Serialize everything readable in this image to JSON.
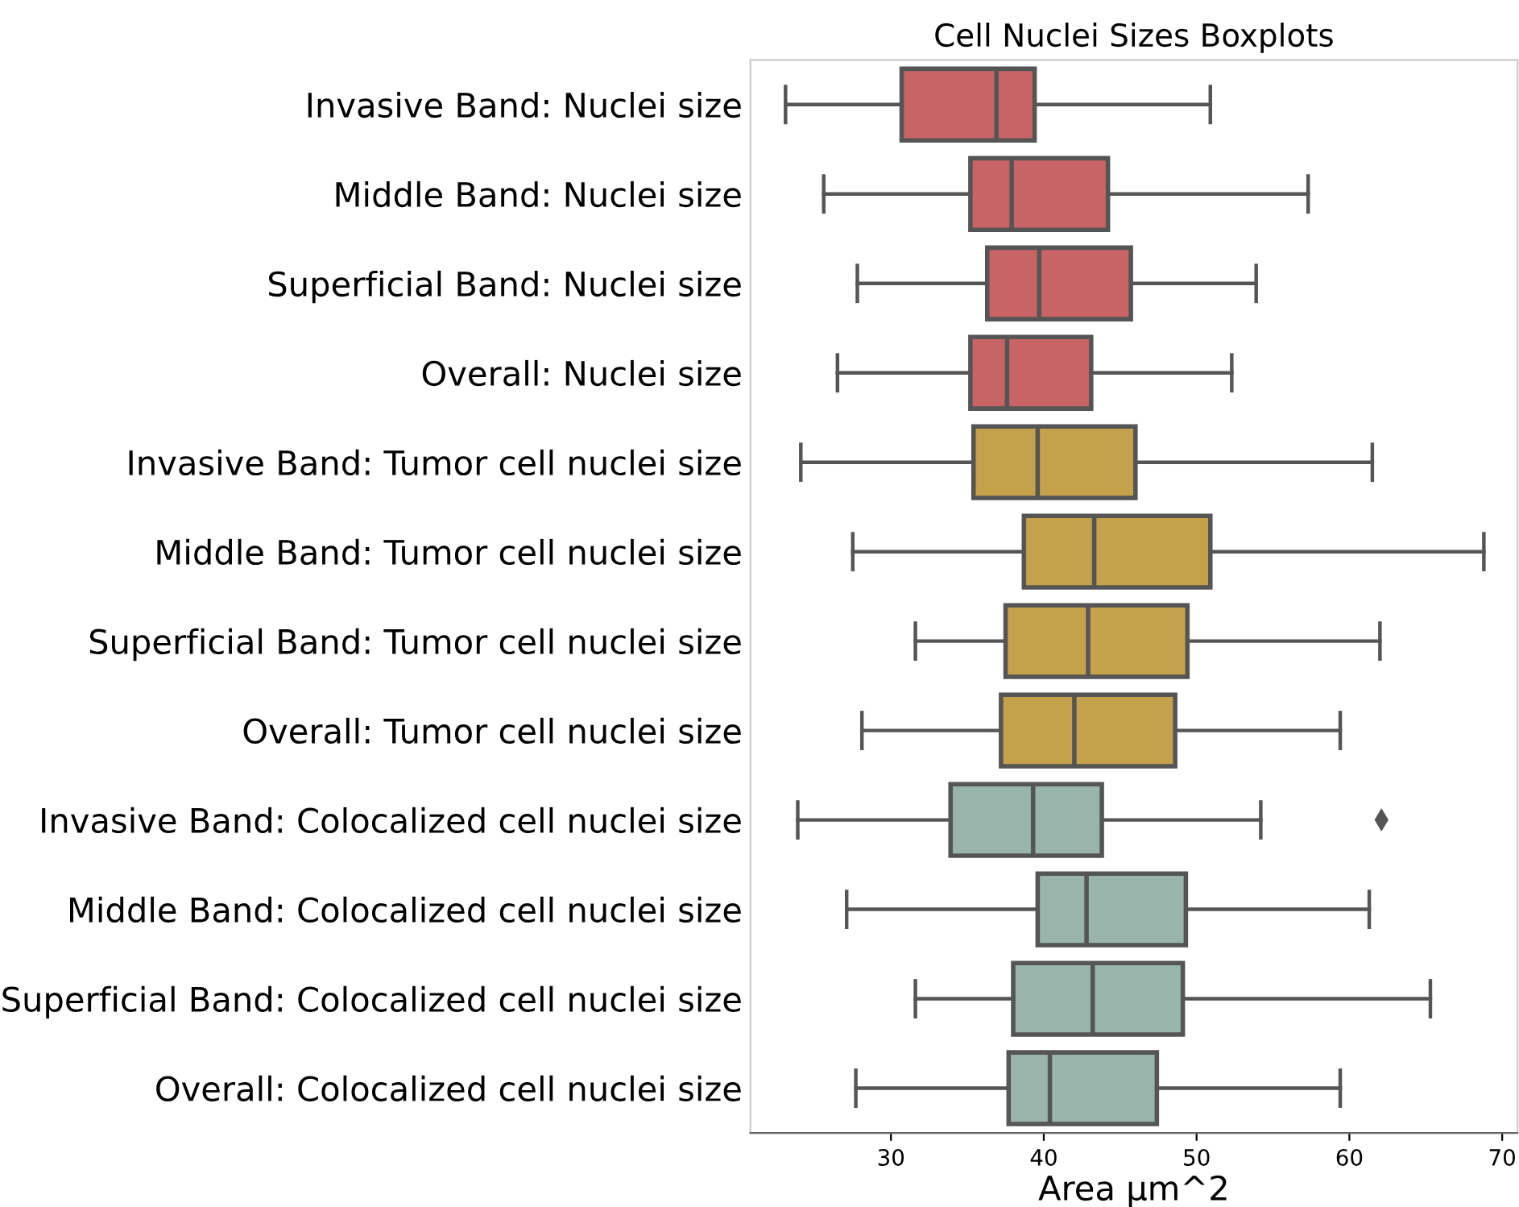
{
  "chart_data": {
    "type": "box",
    "orientation": "horizontal",
    "title": "Cell Nuclei Sizes Boxplots",
    "xlabel": "Area µm^2",
    "categories": [
      "Invasive Band: Nuclei size",
      "Middle Band: Nuclei size",
      "Superficial Band: Nuclei size",
      "Overall: Nuclei size",
      "Invasive Band: Tumor cell nuclei size",
      "Middle Band: Tumor cell nuclei size",
      "Superficial Band: Tumor cell nuclei size",
      "Overall: Tumor cell nuclei size",
      "Invasive Band: Colocalized cell nuclei size",
      "Middle Band: Colocalized cell nuclei size",
      "Superficial Band: Colocalized cell nuclei size",
      "Overall: Colocalized cell nuclei size"
    ],
    "colors": [
      "#c86466",
      "#c86466",
      "#c86466",
      "#c86466",
      "#c4a14a",
      "#c4a14a",
      "#c4a14a",
      "#c4a14a",
      "#99b5ab",
      "#99b5ab",
      "#99b5ab",
      "#99b5ab"
    ],
    "boxes": [
      {
        "low": 23.1,
        "q1": 30.7,
        "median": 36.9,
        "q3": 39.4,
        "high": 50.9
      },
      {
        "low": 25.6,
        "q1": 35.2,
        "median": 37.9,
        "q3": 44.2,
        "high": 57.3
      },
      {
        "low": 27.8,
        "q1": 36.3,
        "median": 39.7,
        "q3": 45.7,
        "high": 53.9
      },
      {
        "low": 26.5,
        "q1": 35.2,
        "median": 37.6,
        "q3": 43.1,
        "high": 52.3
      },
      {
        "low": 24.1,
        "q1": 35.4,
        "median": 39.6,
        "q3": 46.0,
        "high": 61.5
      },
      {
        "low": 27.5,
        "q1": 38.7,
        "median": 43.3,
        "q3": 50.9,
        "high": 68.8
      },
      {
        "low": 31.6,
        "q1": 37.5,
        "median": 42.9,
        "q3": 49.4,
        "high": 62.0
      },
      {
        "low": 28.1,
        "q1": 37.2,
        "median": 42.0,
        "q3": 48.6,
        "high": 59.4
      },
      {
        "low": 23.9,
        "q1": 33.9,
        "median": 39.3,
        "q3": 43.8,
        "high": 54.2,
        "outliers": [
          62.1
        ]
      },
      {
        "low": 27.1,
        "q1": 39.6,
        "median": 42.8,
        "q3": 49.3,
        "high": 61.3
      },
      {
        "low": 31.6,
        "q1": 38.0,
        "median": 43.2,
        "q3": 49.1,
        "high": 65.3
      },
      {
        "low": 27.7,
        "q1": 37.7,
        "median": 40.4,
        "q3": 47.4,
        "high": 59.4
      }
    ],
    "xlim": [
      20.8,
      71.0
    ],
    "xticks": [
      30,
      40,
      50,
      60,
      70
    ],
    "marker": "diamond",
    "grid": false
  }
}
